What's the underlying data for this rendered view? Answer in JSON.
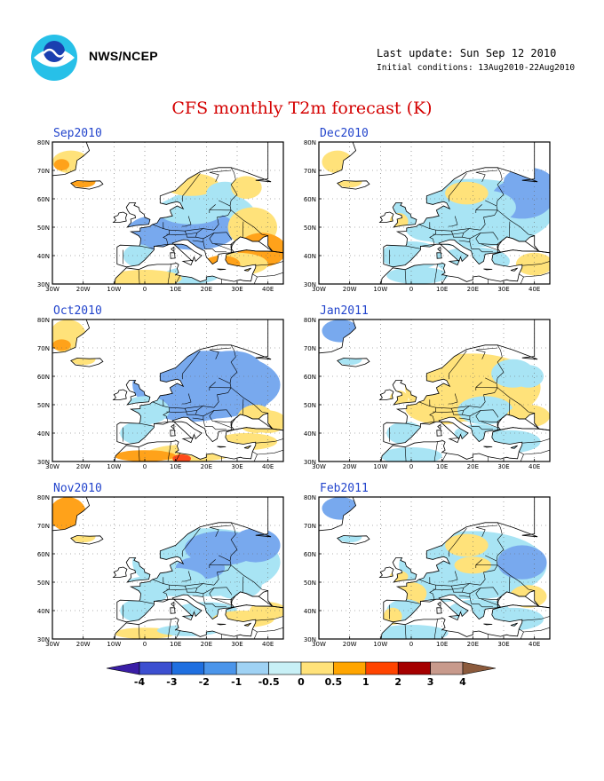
{
  "header": {
    "agency": "NWS/NCEP",
    "last_update": "Last update: Sun Sep 12 2010",
    "initial_conditions": "Initial conditions: 13Aug2010-22Aug2010",
    "title": "CFS monthly T2m forecast (K)"
  },
  "axes": {
    "lat_labels": [
      "80N",
      "70N",
      "60N",
      "50N",
      "40N",
      "30N"
    ],
    "lon_labels": [
      "30W",
      "20W",
      "10W",
      "0",
      "10E",
      "20E",
      "30E",
      "40E"
    ]
  },
  "panels": [
    {
      "label": "Sep2010",
      "pattern": "sep"
    },
    {
      "label": "Dec2010",
      "pattern": "dec"
    },
    {
      "label": "Oct2010",
      "pattern": "oct"
    },
    {
      "label": "Jan2011",
      "pattern": "jan"
    },
    {
      "label": "Nov2010",
      "pattern": "nov"
    },
    {
      "label": "Feb2011",
      "pattern": "feb"
    }
  ],
  "colorbar": {
    "labels": [
      "-4",
      "-3",
      "-2",
      "-1",
      "-0.5",
      "0",
      "0.5",
      "1",
      "2",
      "3",
      "4"
    ],
    "colors": [
      "#3a1ea6",
      "#3c4fd0",
      "#1f6fe0",
      "#4b95ea",
      "#9fd2f4",
      "#c8f0f6",
      "#ffe27a",
      "#ffa500",
      "#ff4400",
      "#a50000",
      "#c89a8c",
      "#8b5a3c"
    ]
  },
  "palette": {
    "m2": "#3b6fd8",
    "m1": "#78a9ee",
    "m05": "#a8e4f4",
    "p05": "#ffe27a",
    "p1": "#ffa21a",
    "p2": "#ff4a1a"
  }
}
